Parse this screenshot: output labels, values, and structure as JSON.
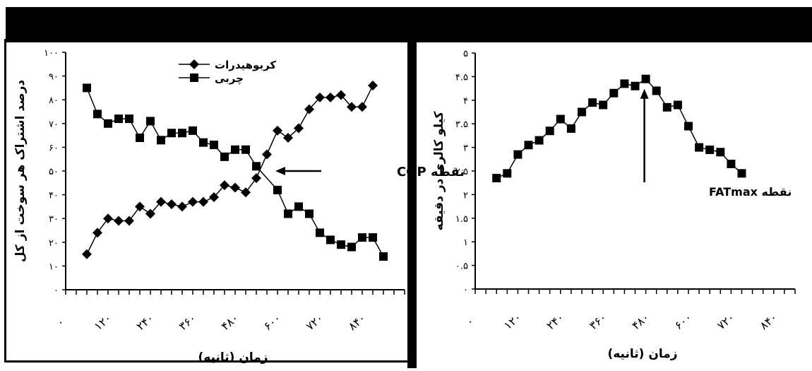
{
  "chart_data": [
    {
      "type": "line",
      "ylabel": "درصد اشتراک هر سوخت از کل",
      "xlabel": "زمان (ثانیه)",
      "ylim": [
        0,
        100
      ],
      "y_ticks": [
        0,
        10,
        20,
        30,
        40,
        50,
        60,
        70,
        80,
        90,
        100
      ],
      "y_tick_labels": [
        "۰",
        "۱۰",
        "۲۰",
        "۳۰",
        "۴۰",
        "۵۰",
        "۶۰",
        "۷۰",
        "۸۰",
        "۹۰",
        "۱۰۰"
      ],
      "xlim": [
        0,
        960
      ],
      "x_ticks": [
        0,
        120,
        240,
        360,
        480,
        600,
        720,
        840
      ],
      "x_tick_labels": [
        "۰",
        "۱۲۰",
        "۲۴۰",
        "۳۶۰",
        "۴۸۰",
        "۶۰۰",
        "۷۲۰",
        "۸۴۰"
      ],
      "legend_position": "top-center",
      "x": [
        60,
        90,
        120,
        150,
        180,
        210,
        240,
        270,
        300,
        330,
        360,
        390,
        420,
        450,
        480,
        510,
        540,
        570,
        600,
        630,
        660,
        690,
        720,
        750,
        780,
        810,
        840,
        870,
        900
      ],
      "series": [
        {
          "name": "کربوهیدرات",
          "marker": "diamond",
          "values": [
            15,
            24,
            30,
            29,
            29,
            35,
            32,
            37,
            36,
            35,
            37,
            37,
            39,
            44,
            43,
            41,
            47,
            57,
            67,
            64,
            68,
            76,
            81,
            81,
            82,
            77,
            77,
            86,
            null
          ]
        },
        {
          "name": "چربی",
          "marker": "square",
          "values": [
            85,
            74,
            70,
            72,
            72,
            64,
            71,
            63,
            66,
            66,
            67,
            62,
            61,
            56,
            59,
            59,
            52,
            null,
            42,
            32,
            35,
            32,
            24,
            21,
            19,
            18,
            22,
            22,
            14
          ]
        }
      ],
      "annotation": {
        "text": "نقطه COP",
        "x": 570,
        "y": 50
      }
    },
    {
      "type": "line",
      "ylabel": "کیلو کالری در دقیقه",
      "xlabel": "زمان (ثانیه)",
      "ylim": [
        0,
        5
      ],
      "y_ticks": [
        0,
        0.5,
        1,
        1.5,
        2,
        2.5,
        3,
        3.5,
        4,
        4.5,
        5
      ],
      "y_tick_labels": [
        "۰",
        "۰.۵",
        "۱",
        "۱.۵",
        "۲",
        "۲.۵",
        "۳",
        "۳.۵",
        "۴",
        "۴.۵",
        "۵"
      ],
      "xlim": [
        0,
        900
      ],
      "x_ticks": [
        0,
        120,
        240,
        360,
        480,
        600,
        720,
        840
      ],
      "x_tick_labels": [
        "۰",
        "۱۲۰",
        "۲۴۰",
        "۳۶۰",
        "۴۸۰",
        "۶۰۰",
        "۷۲۰",
        "۸۴۰"
      ],
      "title_mark": ".",
      "x": [
        60,
        90,
        120,
        150,
        180,
        210,
        240,
        270,
        300,
        330,
        360,
        390,
        420,
        450,
        480,
        510,
        540,
        570,
        600,
        630,
        660,
        690,
        720,
        750
      ],
      "series": [
        {
          "name": "",
          "marker": "square",
          "values": [
            2.35,
            2.45,
            2.85,
            3.05,
            3.15,
            3.35,
            3.6,
            3.4,
            3.75,
            3.95,
            3.9,
            4.15,
            4.35,
            4.3,
            4.45,
            4.2,
            3.85,
            3.9,
            3.45,
            3.0,
            2.95,
            2.9,
            2.65,
            2.45
          ]
        }
      ],
      "annotation": {
        "text": "نقطه FATmax",
        "x": 480,
        "y": 4.45
      }
    }
  ]
}
